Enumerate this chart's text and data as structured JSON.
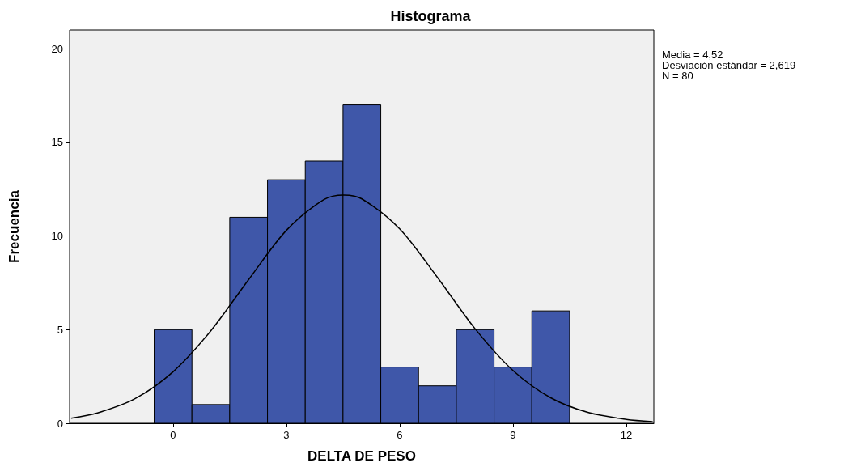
{
  "chart_data": {
    "type": "histogram",
    "title": "Histograma",
    "xlabel": "DELTA DE PESO",
    "ylabel": "Frecuencia",
    "bins": [
      -0.5,
      0.5,
      1.5,
      2.5,
      3.5,
      4.5,
      5.5,
      6.5,
      7.5,
      8.5,
      9.5,
      10.5
    ],
    "values": [
      5,
      1,
      11,
      13,
      14,
      17,
      3,
      2,
      5,
      3,
      6
    ],
    "color": "#3f57a9",
    "series": [
      {
        "type": "line",
        "color": "#000000",
        "x": [
          -2.7,
          -2,
          -1,
          0,
          1,
          2,
          3,
          4,
          4.52,
          5,
          6,
          7,
          8,
          9,
          10,
          11,
          12,
          12.7
        ],
        "values": [
          0.27,
          0.55,
          1.32,
          2.75,
          4.94,
          7.67,
          10.3,
          11.95,
          12.19,
          11.98,
          10.38,
          7.79,
          5.04,
          2.82,
          1.36,
          0.57,
          0.21,
          0.09
        ]
      }
    ],
    "xlim": [
      -2.74,
      12.73
    ],
    "xticks": [
      0,
      3,
      6,
      9,
      12
    ],
    "ylim": [
      0,
      21
    ],
    "yticks": [
      0,
      5,
      10,
      15,
      20
    ],
    "grid": false,
    "marker": "none",
    "line_style": "solid",
    "annotations": [
      "Media = 4,52",
      "Desviación estándar = 2,619",
      "N = 80"
    ]
  }
}
